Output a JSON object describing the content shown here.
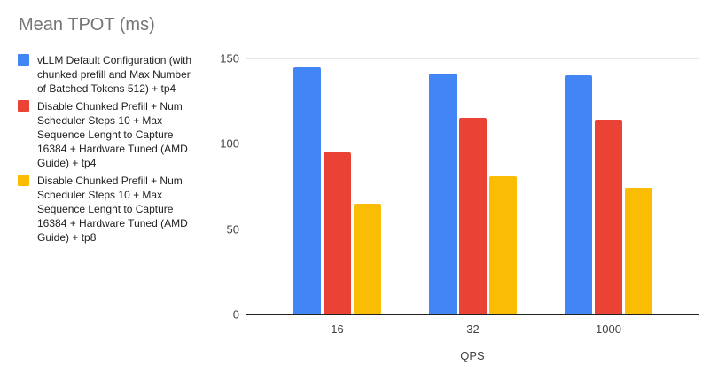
{
  "chart_data": {
    "type": "bar",
    "title": "Mean TPOT (ms)",
    "categories": [
      "16",
      "32",
      "1000"
    ],
    "series": [
      {
        "name": "vLLM Default Configuration (with chunked prefill and Max Number of Batched Tokens 512) + tp4",
        "color": "#4285F4",
        "values": [
          145,
          141,
          140
        ]
      },
      {
        "name": "Disable Chunked Prefill + Num Scheduler Steps 10 + Max Sequence Lenght to Capture 16384 + Hardware Tuned (AMD Guide) + tp4",
        "color": "#EA4335",
        "values": [
          95,
          115,
          114
        ]
      },
      {
        "name": "Disable Chunked Prefill + Num Scheduler Steps 10 + Max Sequence Lenght to Capture 16384 + Hardware Tuned (AMD Guide) + tp8",
        "color": "#FBBC04",
        "values": [
          65,
          81,
          74
        ]
      }
    ],
    "xlabel": "QPS",
    "ylabel": "",
    "ylim": [
      0,
      150
    ],
    "yticks": [
      0,
      50,
      100,
      150
    ],
    "grid": true,
    "legend_position": "left"
  }
}
